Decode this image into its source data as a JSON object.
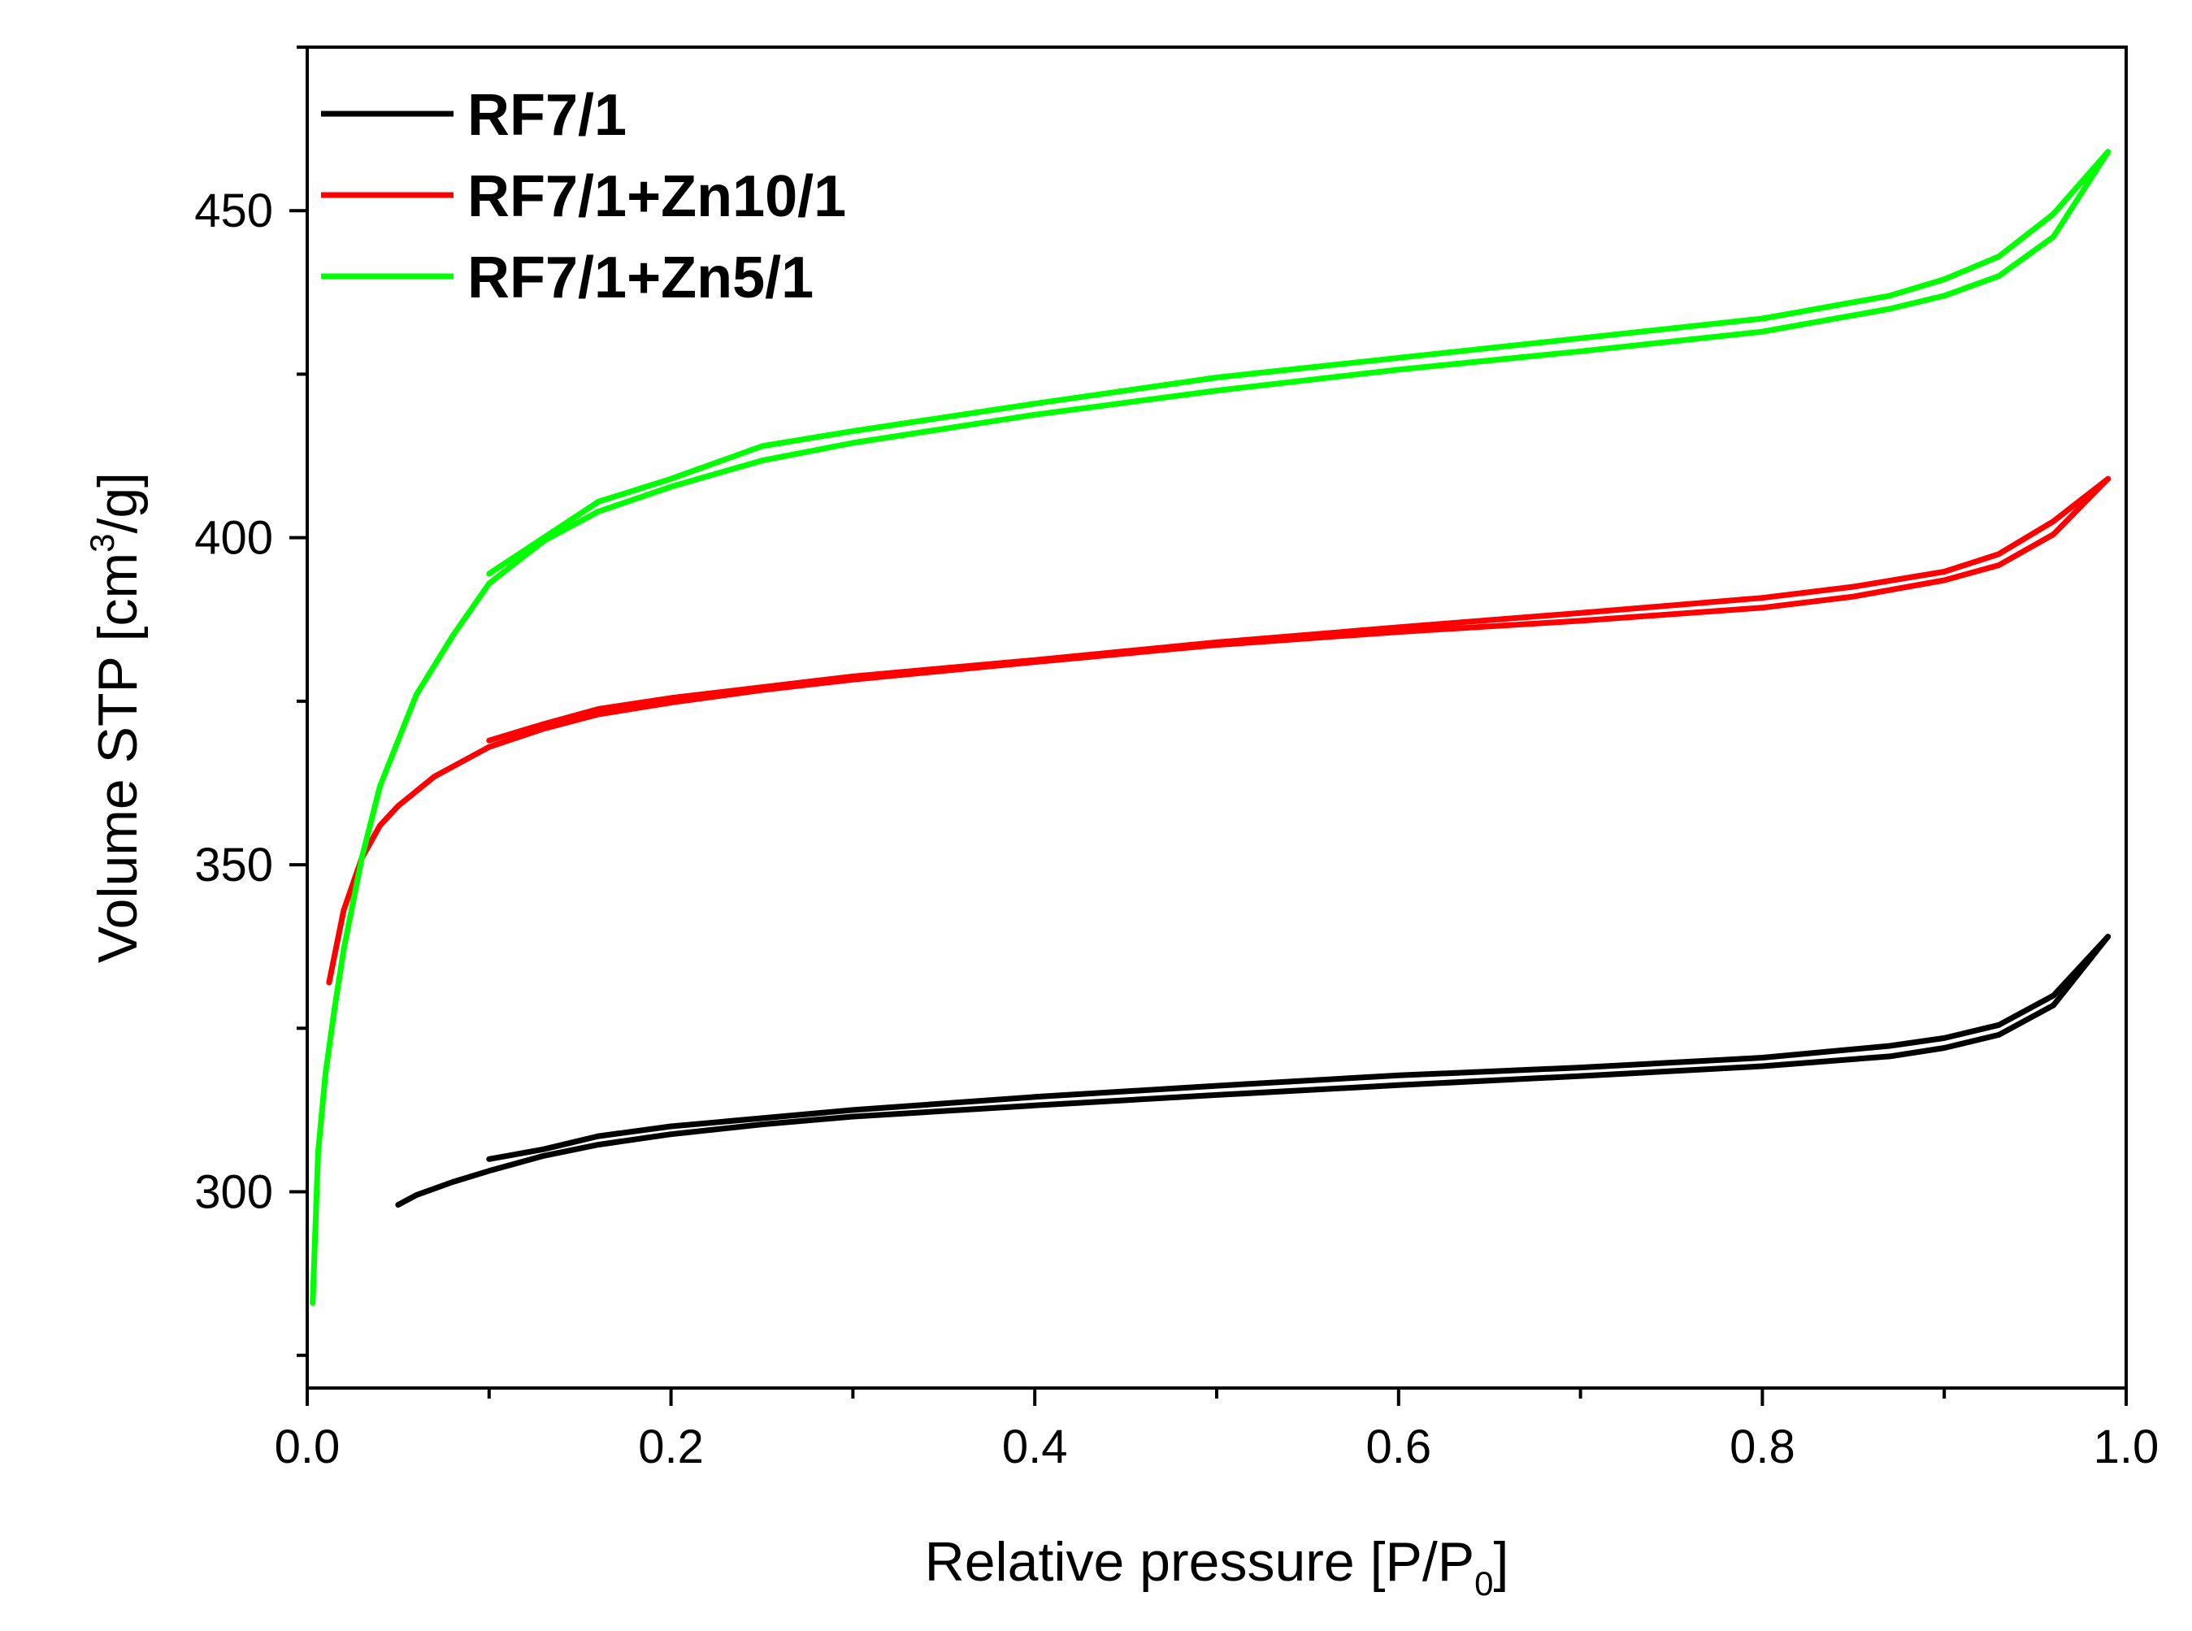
{
  "chart_data": {
    "type": "line",
    "title": "",
    "xlabel": {
      "main": "Relative pressure [P/P",
      "sub": "0",
      "end": "]"
    },
    "ylabel": {
      "main": "Volume STP [cm",
      "sup": "3",
      "end": "/g]"
    },
    "xlim": [
      0.0,
      1.0
    ],
    "ylim": [
      270,
      475
    ],
    "x_ticks": [
      0.0,
      0.2,
      0.4,
      0.6,
      0.8,
      1.0
    ],
    "x_tick_labels": [
      "0.0",
      "0.2",
      "0.4",
      "0.6",
      "0.8",
      "1.0"
    ],
    "x_minor_ticks": [
      0.1,
      0.3,
      0.5,
      0.7,
      0.9
    ],
    "y_ticks": [
      300,
      350,
      400,
      450
    ],
    "y_tick_labels": [
      "300",
      "350",
      "400",
      "450"
    ],
    "y_minor_ticks": [
      275,
      325,
      375,
      425,
      475
    ],
    "grid": false,
    "legend_position": "top-left",
    "series": [
      {
        "name": "RF7/1",
        "color": "#000000",
        "adsorption": [
          [
            0.05,
            298
          ],
          [
            0.06,
            299.5
          ],
          [
            0.08,
            301.5
          ],
          [
            0.1,
            303.2
          ],
          [
            0.13,
            305.5
          ],
          [
            0.16,
            307.2
          ],
          [
            0.2,
            308.8
          ],
          [
            0.25,
            310.3
          ],
          [
            0.3,
            311.5
          ],
          [
            0.4,
            313.2
          ],
          [
            0.5,
            314.8
          ],
          [
            0.6,
            316.3
          ],
          [
            0.7,
            317.7
          ],
          [
            0.8,
            319.2
          ],
          [
            0.87,
            320.7
          ],
          [
            0.9,
            322
          ],
          [
            0.93,
            324
          ],
          [
            0.96,
            328.5
          ],
          [
            0.99,
            339
          ]
        ],
        "desorption": [
          [
            0.99,
            339
          ],
          [
            0.96,
            330
          ],
          [
            0.93,
            325.5
          ],
          [
            0.9,
            323.5
          ],
          [
            0.87,
            322.3
          ],
          [
            0.8,
            320.5
          ],
          [
            0.7,
            319
          ],
          [
            0.6,
            317.8
          ],
          [
            0.5,
            316.2
          ],
          [
            0.4,
            314.5
          ],
          [
            0.3,
            312.5
          ],
          [
            0.2,
            310
          ],
          [
            0.16,
            308.5
          ],
          [
            0.13,
            306.5
          ],
          [
            0.1,
            305
          ]
        ]
      },
      {
        "name": "RF7/1+Zn10/1",
        "color": "#ff0000",
        "adsorption": [
          [
            0.012,
            332
          ],
          [
            0.02,
            343
          ],
          [
            0.03,
            351
          ],
          [
            0.04,
            356
          ],
          [
            0.05,
            359
          ],
          [
            0.07,
            363.5
          ],
          [
            0.1,
            368
          ],
          [
            0.13,
            370.8
          ],
          [
            0.16,
            373
          ],
          [
            0.2,
            374.8
          ],
          [
            0.25,
            376.7
          ],
          [
            0.3,
            378.3
          ],
          [
            0.4,
            381
          ],
          [
            0.5,
            383.6
          ],
          [
            0.6,
            385.6
          ],
          [
            0.7,
            387.3
          ],
          [
            0.8,
            389.3
          ],
          [
            0.85,
            391
          ],
          [
            0.9,
            393.5
          ],
          [
            0.93,
            395.8
          ],
          [
            0.96,
            400.5
          ],
          [
            0.99,
            409
          ]
        ],
        "desorption": [
          [
            0.99,
            409
          ],
          [
            0.96,
            402.5
          ],
          [
            0.93,
            397.5
          ],
          [
            0.9,
            394.8
          ],
          [
            0.85,
            392.5
          ],
          [
            0.8,
            390.8
          ],
          [
            0.7,
            388.5
          ],
          [
            0.6,
            386.3
          ],
          [
            0.5,
            384
          ],
          [
            0.4,
            381.3
          ],
          [
            0.3,
            378.8
          ],
          [
            0.2,
            375.5
          ],
          [
            0.16,
            373.8
          ],
          [
            0.13,
            371.5
          ],
          [
            0.1,
            369
          ]
        ]
      },
      {
        "name": "RF7/1+Zn5/1",
        "color": "#00ff00",
        "adsorption": [
          [
            0.003,
            283
          ],
          [
            0.006,
            306
          ],
          [
            0.01,
            318
          ],
          [
            0.015,
            328
          ],
          [
            0.02,
            337
          ],
          [
            0.03,
            351
          ],
          [
            0.04,
            362
          ],
          [
            0.06,
            376
          ],
          [
            0.08,
            385
          ],
          [
            0.1,
            393
          ],
          [
            0.13,
            399.5
          ],
          [
            0.16,
            404
          ],
          [
            0.2,
            407.8
          ],
          [
            0.25,
            411.8
          ],
          [
            0.3,
            414.5
          ],
          [
            0.4,
            418.8
          ],
          [
            0.5,
            422.5
          ],
          [
            0.6,
            425.7
          ],
          [
            0.7,
            428.5
          ],
          [
            0.8,
            431.5
          ],
          [
            0.87,
            435
          ],
          [
            0.9,
            437
          ],
          [
            0.93,
            440
          ],
          [
            0.96,
            446
          ],
          [
            0.99,
            459
          ]
        ],
        "desorption": [
          [
            0.99,
            459
          ],
          [
            0.96,
            449.5
          ],
          [
            0.93,
            443
          ],
          [
            0.9,
            439.5
          ],
          [
            0.87,
            437
          ],
          [
            0.8,
            433.5
          ],
          [
            0.7,
            430.5
          ],
          [
            0.6,
            427.5
          ],
          [
            0.5,
            424.5
          ],
          [
            0.4,
            420.5
          ],
          [
            0.3,
            416.3
          ],
          [
            0.25,
            414
          ],
          [
            0.2,
            409
          ],
          [
            0.16,
            405.5
          ],
          [
            0.13,
            400
          ],
          [
            0.1,
            394.5
          ]
        ]
      }
    ]
  }
}
